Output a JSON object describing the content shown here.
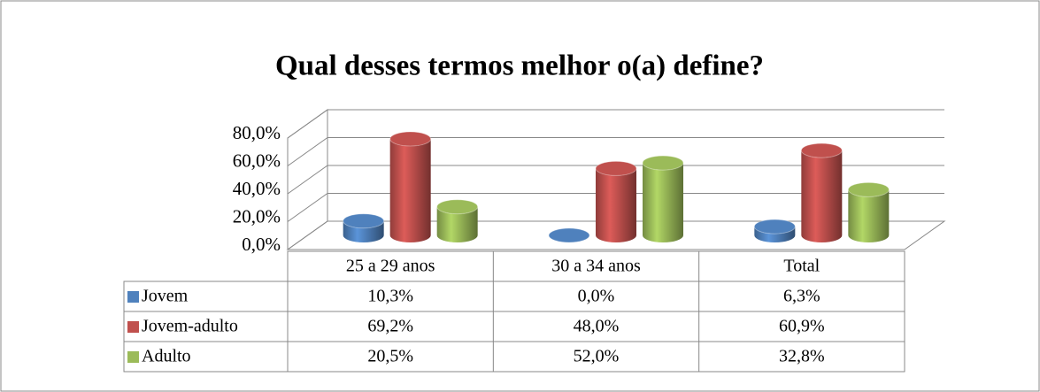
{
  "chart_data": {
    "type": "bar3d",
    "title": "Qual desses termos melhor o(a) define?",
    "categories": [
      "25 a 29 anos",
      "30 a 34 anos",
      "Total"
    ],
    "series": [
      {
        "name": "Jovem",
        "color": "#4f81bd",
        "values": [
          10.3,
          0.0,
          6.3
        ],
        "value_labels": [
          "10,3%",
          "0,0%",
          "6,3%"
        ]
      },
      {
        "name": "Jovem-adulto",
        "color": "#c0504d",
        "values": [
          69.2,
          48.0,
          60.9
        ],
        "value_labels": [
          "69,2%",
          "48,0%",
          "60,9%"
        ]
      },
      {
        "name": "Adulto",
        "color": "#9bbb59",
        "values": [
          20.5,
          52.0,
          32.8
        ],
        "value_labels": [
          "20,5%",
          "52,0%",
          "32,8%"
        ]
      }
    ],
    "ylim": [
      0,
      80
    ],
    "yticks": [
      {
        "value": 0,
        "label": "0,0%"
      },
      {
        "value": 20,
        "label": "20,0%"
      },
      {
        "value": 40,
        "label": "40,0%"
      },
      {
        "value": 60,
        "label": "60,0%"
      },
      {
        "value": 80,
        "label": "80,0%"
      }
    ],
    "grid": true
  }
}
